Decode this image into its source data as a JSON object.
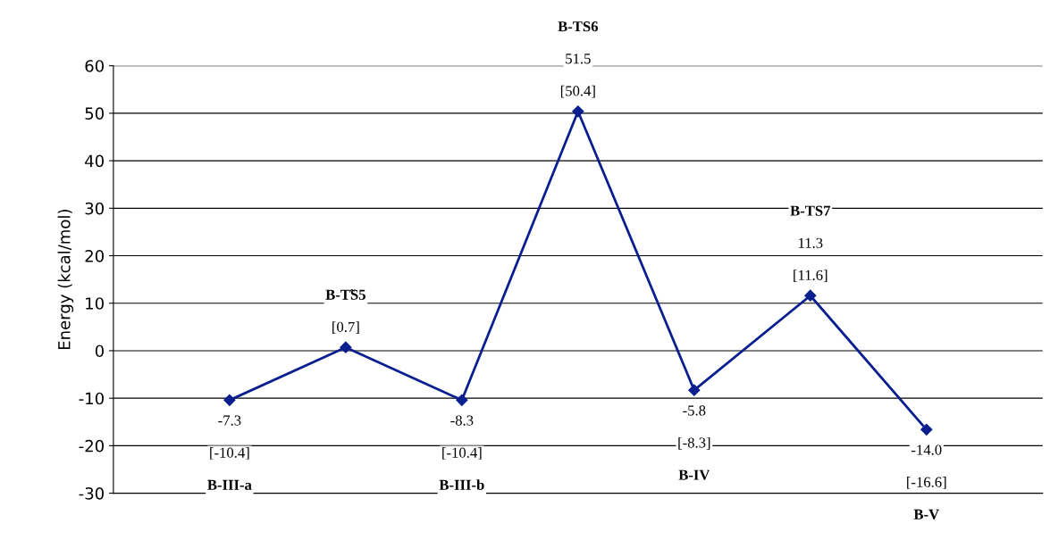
{
  "chart_data": {
    "type": "line",
    "ylabel": "Energy (kcal/mol)",
    "categories": [
      null,
      null,
      null,
      null,
      null,
      null,
      null
    ],
    "series": [
      {
        "color": "#0a1f8f",
        "values": [
          -10.4,
          0.7,
          -10.4,
          50.4,
          -8.3,
          11.6,
          -16.6
        ],
        "value_labels": [
          "-7.3\n[-10.4]\nB-III-a",
          "B-T̃S5\n[0.7]",
          "-8.3\n[-10.4]\nB-III-b",
          "B-TS6\n51.5\n[50.4]",
          "-5.8\n[-8.3]\nB-IV",
          "B-TS7\n11.3\n[11.6]",
          "-14.0\n[-16.6]\nB-V"
        ]
      }
    ],
    "ylim": [
      -30,
      60
    ],
    "yticks": [
      -30,
      -20,
      -10,
      0,
      10,
      20,
      30,
      40,
      50,
      60
    ],
    "grid": "y",
    "marker": "diamond",
    "line_style": "solid",
    "legend": false
  }
}
